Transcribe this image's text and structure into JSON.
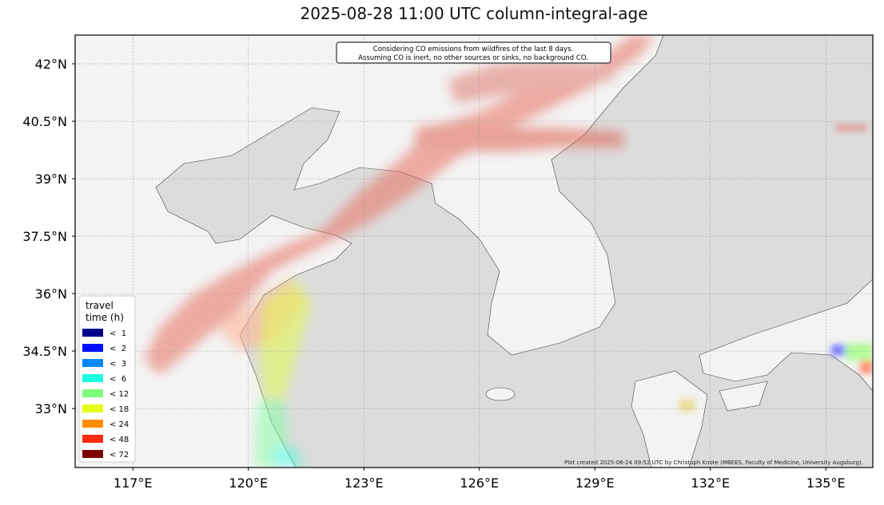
{
  "map": {
    "title": "2025-08-28 11:00 UTC column-integral-age",
    "annotation": [
      "Considering CO emissions from wildfires of the last 8 days.",
      "Assuming CO is inert, no other sources or sinks, no background CO."
    ],
    "credit": "Plot created 2025-08-24 09:52 UTC by Christoph Knote (MBEES, Faculty of Medicine, University Augsburg).",
    "lonlim": [
      115.5,
      136.22
    ],
    "latlim": [
      31.46,
      42.75
    ],
    "lon_ticks": [
      {
        "value": 117,
        "label": "117°E"
      },
      {
        "value": 120,
        "label": "120°E"
      },
      {
        "value": 123,
        "label": "123°E"
      },
      {
        "value": 126,
        "label": "126°E"
      },
      {
        "value": 129,
        "label": "129°E"
      },
      {
        "value": 132,
        "label": "132°E"
      },
      {
        "value": 135,
        "label": "135°E"
      }
    ],
    "lat_ticks": [
      {
        "value": 42,
        "label": "42°N"
      },
      {
        "value": 40.5,
        "label": "40.5°N"
      },
      {
        "value": 39,
        "label": "39°N"
      },
      {
        "value": 37.5,
        "label": "37.5°N"
      },
      {
        "value": 36,
        "label": "36°N"
      },
      {
        "value": 34.5,
        "label": "34.5°N"
      },
      {
        "value": 33,
        "label": "33°N"
      }
    ],
    "legend": {
      "title": [
        "travel",
        "time (h)"
      ],
      "entries": [
        {
          "label": "<  1",
          "color": "#00008b"
        },
        {
          "label": "<  2",
          "color": "#0010ff"
        },
        {
          "label": "<  3",
          "color": "#0088ff"
        },
        {
          "label": "<  6",
          "color": "#1affe0"
        },
        {
          "label": "< 12",
          "color": "#7cff7a"
        },
        {
          "label": "< 18",
          "color": "#e4ff1a"
        },
        {
          "label": "< 24",
          "color": "#ff8c00"
        },
        {
          "label": "< 48",
          "color": "#ff2a10"
        },
        {
          "label": "< 72",
          "color": "#800000"
        }
      ]
    }
  }
}
